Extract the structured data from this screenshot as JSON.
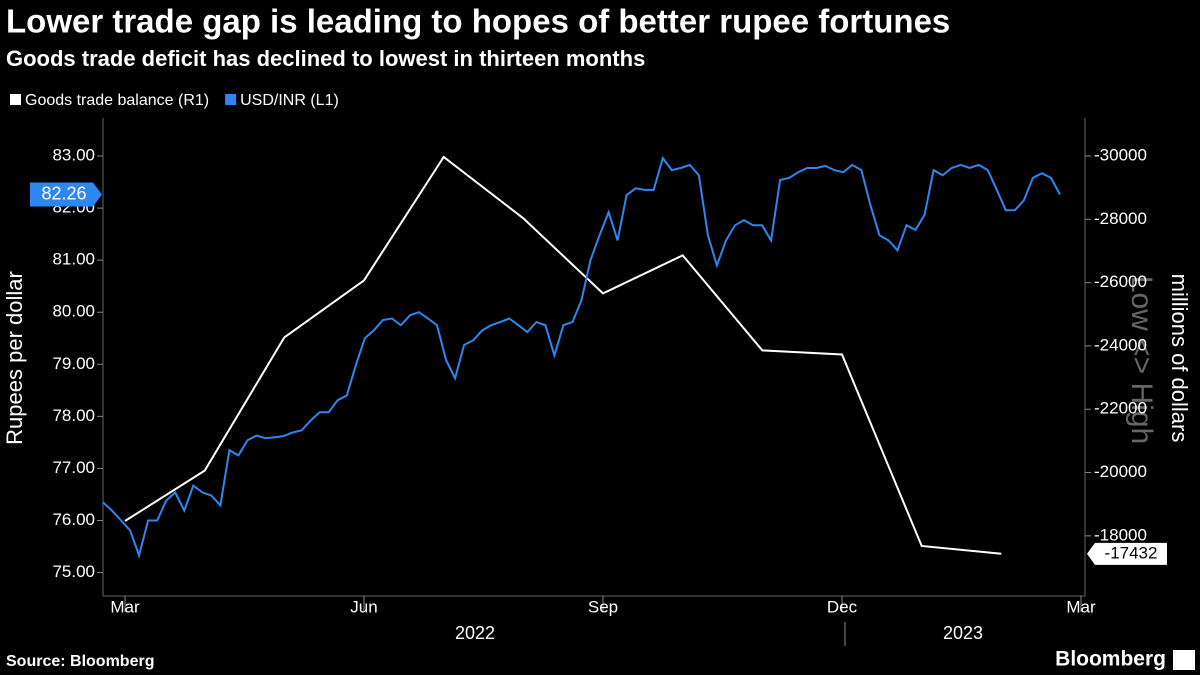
{
  "chart_data": {
    "type": "line",
    "title": "Lower trade gap is leading to hopes of better rupee fortunes",
    "subtitle": "Goods trade deficit has declined to lowest in thirteen months",
    "y_label": "Rupees per dollar",
    "y2_label": "millions of dollars",
    "annotation": "Low <> High",
    "source": "Source: Bloomberg",
    "brand": "Bloomberg",
    "years": [
      "2022",
      "2023"
    ],
    "xlim": [
      "2022-03",
      "2023-03"
    ],
    "xticks": [
      {
        "value": "2022-03",
        "label": "Mar"
      },
      {
        "value": "2022-06",
        "label": "Jun"
      },
      {
        "value": "2022-09",
        "label": "Sep"
      },
      {
        "value": "2022-12",
        "label": "Dec"
      },
      {
        "value": "2023-03",
        "label": "Mar"
      }
    ],
    "ylim": [
      74.55,
      83.73
    ],
    "yticks": [
      {
        "value": 75,
        "label": "75.00"
      },
      {
        "value": 76,
        "label": "76.00"
      },
      {
        "value": 77,
        "label": "77.00"
      },
      {
        "value": 78,
        "label": "78.00"
      },
      {
        "value": 79,
        "label": "79.00"
      },
      {
        "value": 80,
        "label": "80.00"
      },
      {
        "value": 81,
        "label": "81.00"
      },
      {
        "value": 82,
        "label": "82.00"
      },
      {
        "value": 83,
        "label": "83.00"
      }
    ],
    "y2lim": [
      -16100,
      -31200
    ],
    "y2ticks": [
      -18000,
      -20000,
      -22000,
      -24000,
      -26000,
      -28000,
      -30000
    ],
    "series": [
      {
        "name": "Goods trade balance (R1)",
        "color": "#ffffff",
        "axis": "y2",
        "x": [
          "2022-03",
          "2022-04",
          "2022-05",
          "2022-06",
          "2022-07",
          "2022-08",
          "2022-09",
          "2022-10",
          "2022-11",
          "2022-12",
          "2023-01",
          "2023-02"
        ],
        "values": [
          -18470,
          -20060,
          -24270,
          -26070,
          -29970,
          -28030,
          -25660,
          -26860,
          -23860,
          -23730,
          -17680,
          -17432
        ]
      },
      {
        "name": "USD/INR (L1)",
        "color": "#2e86f0",
        "values": [
          76.35,
          76.19,
          76.0,
          75.81,
          75.33,
          76.0,
          76.0,
          76.38,
          76.54,
          76.19,
          76.67,
          76.54,
          76.48,
          76.29,
          77.35,
          77.25,
          77.54,
          77.63,
          77.58,
          77.6,
          77.62,
          77.69,
          77.73,
          77.92,
          78.08,
          78.08,
          78.31,
          78.4,
          78.98,
          79.5,
          79.65,
          79.85,
          79.88,
          79.75,
          79.94,
          80.0,
          79.88,
          79.75,
          79.08,
          78.73,
          79.37,
          79.46,
          79.65,
          79.75,
          79.81,
          79.88,
          79.75,
          79.62,
          79.81,
          79.75,
          79.17,
          79.75,
          79.81,
          80.23,
          81.0,
          81.48,
          81.92,
          81.38,
          82.25,
          82.38,
          82.35,
          82.35,
          82.96,
          82.73,
          82.77,
          82.83,
          82.63,
          81.48,
          80.9,
          81.38,
          81.67,
          81.77,
          81.67,
          81.67,
          81.38,
          82.54,
          82.58,
          82.69,
          82.77,
          82.77,
          82.81,
          82.73,
          82.69,
          82.83,
          82.73,
          82.06,
          81.48,
          81.38,
          81.19,
          81.67,
          81.58,
          81.87,
          82.73,
          82.63,
          82.77,
          82.83,
          82.77,
          82.83,
          82.73,
          82.35,
          81.96,
          81.96,
          82.15,
          82.58,
          82.67,
          82.58,
          82.26
        ]
      }
    ]
  }
}
